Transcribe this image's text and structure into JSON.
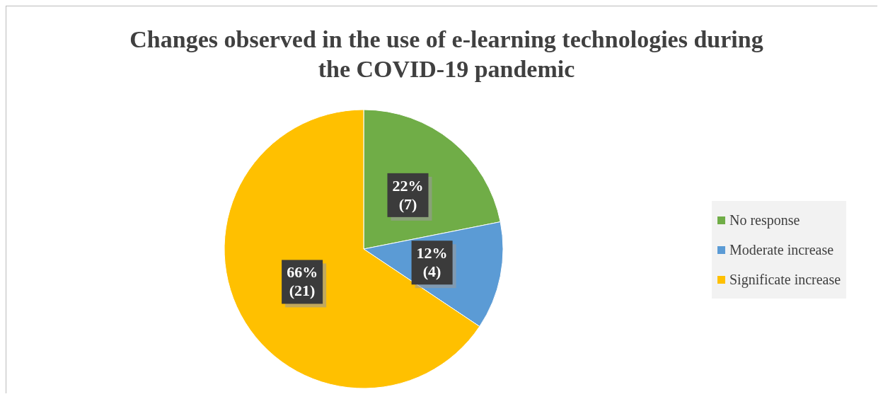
{
  "chart_data": {
    "type": "pie",
    "title": "Changes observed in the use of e-learning technologies during the COVID-19 pandemic",
    "categories": [
      "No response",
      "Moderate increase",
      "Significate increase"
    ],
    "values": [
      7,
      4,
      21
    ],
    "colors": [
      "#70ad47",
      "#5b9bd5",
      "#ffc000"
    ],
    "value_labels": [
      "22%\n(7)",
      "12%\n(4)",
      "66%\n(21)"
    ],
    "legend": "right"
  }
}
